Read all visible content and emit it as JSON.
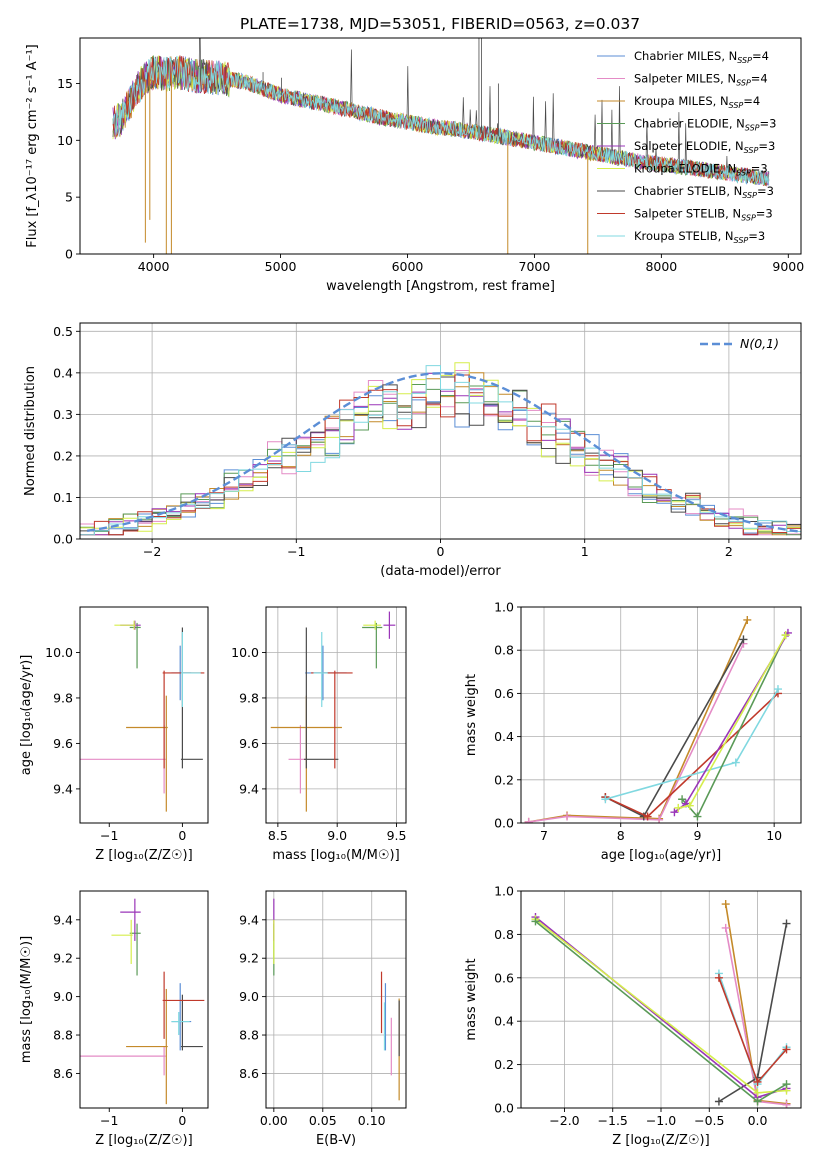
{
  "figure": {
    "title": "PLATE=1738, MJD=53051, FIBERID=0563, z=0.037"
  },
  "colors": {
    "Chabrier MILES": "#5b8ed6",
    "Salpeter MILES": "#e48bc6",
    "Kroupa MILES": "#c48a2a",
    "Chabrier ELODIE": "#5a9a57",
    "Salpeter ELODIE": "#9a35b8",
    "Kroupa ELODIE": "#d5ee4c",
    "Chabrier STELIB": "#4a4a4a",
    "Salpeter STELIB": "#c0392b",
    "Kroupa STELIB": "#80d8e0",
    "orange": "#e07b2a",
    "normal": "#5b8ed6"
  },
  "chart_data": [
    {
      "id": "spectrum",
      "type": "line",
      "xlabel": "wavelength [Angstrom, rest frame]",
      "ylabel": "Flux [f_λ10⁻¹⁷ erg cm⁻² s⁻¹ A⁻¹]",
      "xlim": [
        3420,
        9100
      ],
      "ylim": [
        0,
        19
      ],
      "xticks": [
        4000,
        5000,
        6000,
        7000,
        8000,
        9000
      ],
      "yticks": [
        0,
        5,
        10,
        15
      ],
      "grid": false,
      "legend_position": "top-right",
      "continuum": {
        "x": [
          3680,
          3750,
          3800,
          3900,
          4000,
          4100,
          4200,
          4300,
          4500,
          4700,
          5000,
          5200,
          5500,
          5800,
          6000,
          6200,
          6500,
          6800,
          7000,
          7400,
          7800,
          8200,
          8600,
          8850
        ],
        "y": [
          11.5,
          12.0,
          13.0,
          15.0,
          16.0,
          15.8,
          16.0,
          15.7,
          15.5,
          15.2,
          14.0,
          13.5,
          12.8,
          12.0,
          11.6,
          11.2,
          10.8,
          10.2,
          9.8,
          9.0,
          8.2,
          7.6,
          7.0,
          6.6
        ]
      },
      "series": [
        {
          "name": "Chabrier MILES",
          "nssp": "4"
        },
        {
          "name": "Salpeter MILES",
          "nssp": "4"
        },
        {
          "name": "Kroupa MILES",
          "nssp": "4"
        },
        {
          "name": "Chabrier ELODIE",
          "nssp": "3"
        },
        {
          "name": "Salpeter ELODIE",
          "nssp": "3"
        },
        {
          "name": "Kroupa ELODIE",
          "nssp": "3"
        },
        {
          "name": "Chabrier STELIB",
          "nssp": "3"
        },
        {
          "name": "Salpeter STELIB",
          "nssp": "3"
        },
        {
          "name": "Kroupa STELIB",
          "nssp": "3"
        }
      ]
    },
    {
      "id": "residuals",
      "type": "line",
      "xlabel": "(data-model)/error",
      "ylabel": "Normed distribution",
      "xlim": [
        -2.5,
        2.5
      ],
      "ylim": [
        0,
        0.52
      ],
      "xticks": [
        -2,
        -1,
        0,
        1,
        2
      ],
      "yticks": [
        0.0,
        0.1,
        0.2,
        0.3,
        0.4,
        0.5
      ],
      "grid": true,
      "legend_position": "top-right",
      "legend_label": "N(0,1)",
      "normal_curve": {
        "mean": 0,
        "sigma": 1
      }
    },
    {
      "id": "age-vs-Z",
      "type": "scatter",
      "xlabel": "Z [log₁₀(Z/Z☉)]",
      "ylabel": "age  [log₁₀(age/yr)]",
      "xlim": [
        -1.4,
        0.35
      ],
      "ylim": [
        9.25,
        10.2
      ],
      "xticks": [
        -1,
        0
      ],
      "yticks": [
        9.4,
        9.6,
        9.8,
        10.0
      ],
      "grid": false,
      "points": [
        {
          "series": "Chabrier MILES",
          "x": -0.03,
          "y": 9.91,
          "xerr": [
            0.12,
            0.15
          ],
          "yerr": [
            0.12,
            0.12
          ]
        },
        {
          "series": "Salpeter MILES",
          "x": -0.25,
          "y": 9.53,
          "xerr": [
            1.35,
            0.02
          ],
          "yerr": [
            0.15,
            0.15
          ]
        },
        {
          "series": "Kroupa MILES",
          "x": -0.22,
          "y": 9.67,
          "xerr": [
            0.55,
            0.02
          ],
          "yerr": [
            0.37,
            0.14
          ]
        },
        {
          "series": "Chabrier ELODIE",
          "x": -0.62,
          "y": 10.11,
          "xerr": [
            0.1,
            0.05
          ],
          "yerr": [
            0.18,
            0.02
          ]
        },
        {
          "series": "Salpeter ELODIE",
          "x": -0.65,
          "y": 10.12,
          "xerr": [
            0.2,
            0.08
          ],
          "yerr": [
            0.02,
            0.02
          ]
        },
        {
          "series": "Kroupa ELODIE",
          "x": -0.66,
          "y": 10.12,
          "xerr": [
            0.27,
            0.02
          ],
          "yerr": [
            0.02,
            0.02
          ]
        },
        {
          "series": "Chabrier STELIB",
          "x": 0.0,
          "y": 9.53,
          "xerr": [
            0.02,
            0.28
          ],
          "yerr": [
            0.04,
            0.58
          ]
        },
        {
          "series": "Salpeter STELIB",
          "x": -0.25,
          "y": 9.91,
          "xerr": [
            0.02,
            0.55
          ],
          "yerr": [
            0.42,
            0.01
          ]
        },
        {
          "series": "Kroupa STELIB",
          "x": 0.0,
          "y": 9.91,
          "xerr": [
            0.02,
            0.25
          ],
          "yerr": [
            0.15,
            0.18
          ]
        }
      ]
    },
    {
      "id": "age-vs-mass",
      "type": "scatter",
      "xlabel": "mass [log₁₀(M/M☉)]",
      "ylabel": "",
      "xlim": [
        8.4,
        9.58
      ],
      "ylim": [
        9.25,
        10.2
      ],
      "xticks": [
        8.5,
        9.0,
        9.5
      ],
      "yticks": [
        9.4,
        9.6,
        9.8,
        10.0
      ],
      "grid": true,
      "points": [
        {
          "series": "Chabrier MILES",
          "x": 8.88,
          "y": 9.91,
          "xerr": [
            0.15,
            0.2
          ],
          "yerr": [
            0.12,
            0.12
          ]
        },
        {
          "series": "Salpeter MILES",
          "x": 8.69,
          "y": 9.53,
          "xerr": [
            0.1,
            0.05
          ],
          "yerr": [
            0.15,
            0.15
          ]
        },
        {
          "series": "Kroupa MILES",
          "x": 8.74,
          "y": 9.67,
          "xerr": [
            0.3,
            0.3
          ],
          "yerr": [
            0.37,
            0.14
          ]
        },
        {
          "series": "Chabrier ELODIE",
          "x": 9.33,
          "y": 10.11,
          "xerr": [
            0.12,
            0.05
          ],
          "yerr": [
            0.18,
            0.02
          ]
        },
        {
          "series": "Salpeter ELODIE",
          "x": 9.44,
          "y": 10.12,
          "xerr": [
            0.05,
            0.05
          ],
          "yerr": [
            0.06,
            0.06
          ]
        },
        {
          "series": "Kroupa ELODIE",
          "x": 9.32,
          "y": 10.12,
          "xerr": [
            0.1,
            0.05
          ],
          "yerr": [
            0.02,
            0.02
          ]
        },
        {
          "series": "Chabrier STELIB",
          "x": 8.74,
          "y": 9.53,
          "xerr": [
            0.02,
            0.27
          ],
          "yerr": [
            0.04,
            0.58
          ]
        },
        {
          "series": "Salpeter STELIB",
          "x": 8.98,
          "y": 9.91,
          "xerr": [
            0.2,
            0.15
          ],
          "yerr": [
            0.42,
            0.01
          ]
        },
        {
          "series": "Kroupa STELIB",
          "x": 8.87,
          "y": 9.91,
          "xerr": [
            0.07,
            0.05
          ],
          "yerr": [
            0.15,
            0.18
          ]
        }
      ]
    },
    {
      "id": "weight-vs-age",
      "type": "line",
      "xlabel": "age  [log₁₀(age/yr)]",
      "ylabel": "mass weight",
      "xlim": [
        6.7,
        10.35
      ],
      "ylim": [
        0,
        1.0
      ],
      "xticks": [
        7,
        8,
        9,
        10
      ],
      "yticks": [
        0.0,
        0.2,
        0.4,
        0.6,
        0.8,
        1.0
      ],
      "grid": true,
      "lines": [
        {
          "series": "Kroupa MILES",
          "x": [
            6.8,
            7.3,
            8.5,
            9.65
          ],
          "y": [
            0.005,
            0.035,
            0.02,
            0.94
          ]
        },
        {
          "series": "Salpeter MILES",
          "x": [
            6.8,
            7.3,
            8.5,
            9.6
          ],
          "y": [
            0.005,
            0.03,
            0.015,
            0.83
          ]
        },
        {
          "series": "Chabrier STELIB",
          "x": [
            7.8,
            8.3,
            9.6
          ],
          "y": [
            0.12,
            0.03,
            0.85
          ]
        },
        {
          "series": "Salpeter STELIB",
          "x": [
            7.8,
            8.35,
            10.05
          ],
          "y": [
            0.12,
            0.03,
            0.6
          ]
        },
        {
          "series": "Kroupa STELIB",
          "x": [
            7.8,
            9.5,
            10.05
          ],
          "y": [
            0.11,
            0.28,
            0.62
          ]
        },
        {
          "series": "Chabrier ELODIE",
          "x": [
            8.8,
            9.0,
            10.15
          ],
          "y": [
            0.11,
            0.03,
            0.87
          ]
        },
        {
          "series": "Salpeter ELODIE",
          "x": [
            8.7,
            8.85,
            10.18
          ],
          "y": [
            0.05,
            0.09,
            0.88
          ]
        },
        {
          "series": "Kroupa ELODIE",
          "x": [
            8.75,
            8.9,
            10.15
          ],
          "y": [
            0.07,
            0.08,
            0.87
          ]
        }
      ]
    },
    {
      "id": "mass-vs-Z",
      "type": "scatter",
      "xlabel": "Z [log₁₀(Z/Z☉)]",
      "ylabel": "mass [log₁₀(M/M☉)]",
      "xlim": [
        -1.4,
        0.35
      ],
      "ylim": [
        8.42,
        9.55
      ],
      "xticks": [
        -1,
        0
      ],
      "yticks": [
        8.6,
        8.8,
        9.0,
        9.2,
        9.4
      ],
      "grid": false,
      "points": [
        {
          "series": "Chabrier MILES",
          "x": -0.03,
          "y": 8.87,
          "xerr": [
            0.12,
            0.15
          ],
          "yerr": [
            0.15,
            0.2
          ]
        },
        {
          "series": "Salpeter MILES",
          "x": -0.25,
          "y": 8.69,
          "xerr": [
            1.35,
            0.02
          ],
          "yerr": [
            0.1,
            0.05
          ]
        },
        {
          "series": "Kroupa MILES",
          "x": -0.22,
          "y": 8.74,
          "xerr": [
            0.55,
            0.02
          ],
          "yerr": [
            0.3,
            0.3
          ]
        },
        {
          "series": "Chabrier ELODIE",
          "x": -0.62,
          "y": 9.33,
          "xerr": [
            0.1,
            0.05
          ],
          "yerr": [
            0.22,
            0.05
          ]
        },
        {
          "series": "Salpeter ELODIE",
          "x": -0.65,
          "y": 9.44,
          "xerr": [
            0.2,
            0.08
          ],
          "yerr": [
            0.15,
            0.07
          ]
        },
        {
          "series": "Kroupa ELODIE",
          "x": -0.7,
          "y": 9.32,
          "xerr": [
            0.27,
            0.02
          ],
          "yerr": [
            0.15,
            0.08
          ]
        },
        {
          "series": "Chabrier STELIB",
          "x": 0.0,
          "y": 8.74,
          "xerr": [
            0.02,
            0.28
          ],
          "yerr": [
            0.02,
            0.27
          ]
        },
        {
          "series": "Salpeter STELIB",
          "x": -0.25,
          "y": 8.98,
          "xerr": [
            0.02,
            0.55
          ],
          "yerr": [
            0.2,
            0.15
          ]
        },
        {
          "series": "Kroupa STELIB",
          "x": -0.05,
          "y": 8.87,
          "xerr": [
            0.1,
            0.15
          ],
          "yerr": [
            0.07,
            0.05
          ]
        }
      ]
    },
    {
      "id": "mass-vs-ebv",
      "type": "scatter",
      "xlabel": "E(B-V)",
      "ylabel": "",
      "xlim": [
        -0.008,
        0.135
      ],
      "ylim": [
        8.42,
        9.55
      ],
      "xticks": [
        0.0,
        0.05,
        0.1
      ],
      "xticklabels": [
        "0.00",
        "0.05",
        "0.10"
      ],
      "yticks": [
        8.6,
        8.8,
        9.0,
        9.2,
        9.4
      ],
      "grid": true,
      "points": [
        {
          "series": "Chabrier MILES",
          "x": 0.114,
          "y": 8.87,
          "xerr": [
            0,
            0
          ],
          "yerr": [
            0.15,
            0.2
          ]
        },
        {
          "series": "Salpeter MILES",
          "x": 0.12,
          "y": 8.74,
          "xerr": [
            0,
            0
          ],
          "yerr": [
            0.15,
            0.15
          ]
        },
        {
          "series": "Kroupa MILES",
          "x": 0.128,
          "y": 8.74,
          "xerr": [
            0,
            0
          ],
          "yerr": [
            0.28,
            0.25
          ]
        },
        {
          "series": "Chabrier ELODIE",
          "x": 0.0,
          "y": 9.33,
          "xerr": [
            0,
            0
          ],
          "yerr": [
            0.22,
            0.05
          ]
        },
        {
          "series": "Salpeter ELODIE",
          "x": 0.0,
          "y": 9.44,
          "xerr": [
            0,
            0
          ],
          "yerr": [
            0.15,
            0.07
          ]
        },
        {
          "series": "Kroupa ELODIE",
          "x": 0.0,
          "y": 9.32,
          "xerr": [
            0,
            0
          ],
          "yerr": [
            0.15,
            0.08
          ]
        },
        {
          "series": "Chabrier STELIB",
          "x": 0.128,
          "y": 8.74,
          "xerr": [
            0,
            0
          ],
          "yerr": [
            0.05,
            0.24
          ]
        },
        {
          "series": "Salpeter STELIB",
          "x": 0.11,
          "y": 8.98,
          "xerr": [
            0,
            0
          ],
          "yerr": [
            0.17,
            0.15
          ]
        },
        {
          "series": "Kroupa STELIB",
          "x": 0.113,
          "y": 8.87,
          "xerr": [
            0,
            0
          ],
          "yerr": [
            0.15,
            0.1
          ]
        }
      ]
    },
    {
      "id": "weight-vs-Z",
      "type": "line",
      "xlabel": "Z [log₁₀(Z/Z☉)]",
      "ylabel": "mass weight",
      "xlim": [
        -2.45,
        0.45
      ],
      "ylim": [
        0,
        1.0
      ],
      "xticks": [
        -2.0,
        -1.5,
        -1.0,
        -0.5,
        0.0
      ],
      "xticklabels": [
        "−2.0",
        "−1.5",
        "−1.0",
        "−0.5",
        "0.0"
      ],
      "yticks": [
        0.0,
        0.2,
        0.4,
        0.6,
        0.8,
        1.0
      ],
      "grid": true,
      "lines": [
        {
          "series": "Kroupa MILES",
          "x": [
            -0.33,
            0.0,
            0.3
          ],
          "y": [
            0.94,
            0.035,
            0.02
          ]
        },
        {
          "series": "Salpeter MILES",
          "x": [
            -0.33,
            0.0,
            0.3
          ],
          "y": [
            0.83,
            0.03,
            0.015
          ]
        },
        {
          "series": "Chabrier STELIB",
          "x": [
            -0.4,
            0.0,
            0.3
          ],
          "y": [
            0.03,
            0.14,
            0.85
          ]
        },
        {
          "series": "Kroupa STELIB",
          "x": [
            -0.4,
            0.0,
            0.3
          ],
          "y": [
            0.62,
            0.11,
            0.28
          ]
        },
        {
          "series": "Salpeter STELIB",
          "x": [
            -0.4,
            0.0,
            0.3
          ],
          "y": [
            0.6,
            0.12,
            0.27
          ]
        },
        {
          "series": "Salpeter ELODIE",
          "x": [
            -2.3,
            0.0,
            0.3
          ],
          "y": [
            0.88,
            0.05,
            0.09
          ]
        },
        {
          "series": "Kroupa ELODIE",
          "x": [
            -2.3,
            0.0,
            0.3
          ],
          "y": [
            0.87,
            0.07,
            0.08
          ]
        },
        {
          "series": "Chabrier ELODIE",
          "x": [
            -2.3,
            0.0,
            0.3
          ],
          "y": [
            0.86,
            0.03,
            0.11
          ]
        }
      ]
    }
  ]
}
